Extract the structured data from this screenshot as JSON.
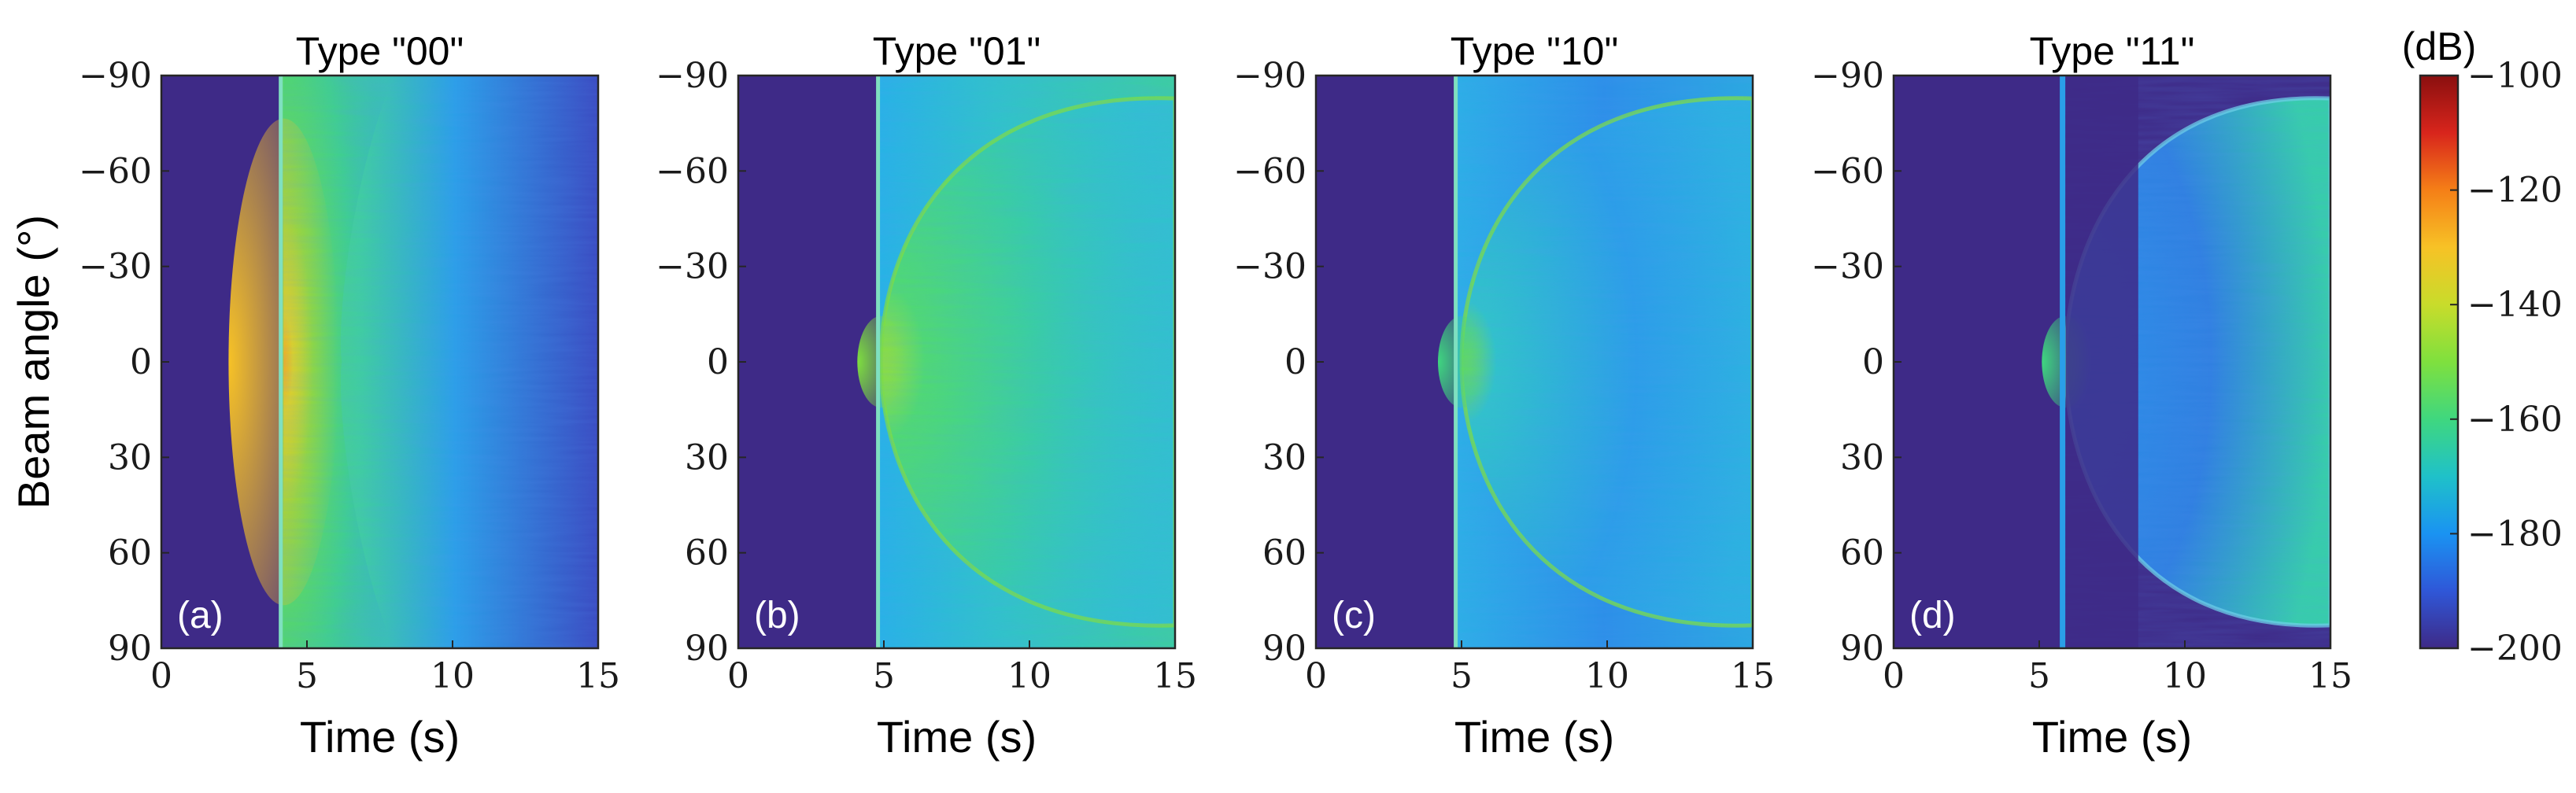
{
  "chart_data": {
    "type": "heatmap",
    "ylabel": "Beam angle (°)",
    "xlabel": "Time (s)",
    "xlim": [
      0,
      15
    ],
    "ylim": [
      -90,
      90
    ],
    "xticks": [
      "0",
      "5",
      "10",
      "15"
    ],
    "yticks": [
      "−90",
      "−60",
      "−30",
      "0",
      "30",
      "60",
      "90"
    ],
    "yticks_values": [
      -90,
      -60,
      -30,
      0,
      30,
      60,
      90
    ],
    "xticks_values": [
      0,
      5,
      10,
      15
    ],
    "panels": [
      {
        "label": "(a)",
        "title": "Type \"00\"",
        "onset_s": 4.1,
        "peak_db": -130,
        "cap_vertex_s": 4.2,
        "cap_edge_s": 8.0,
        "noise_floor_db": -200
      },
      {
        "label": "(b)",
        "title": "Type \"01\"",
        "onset_s": 4.8,
        "peak_db": -150,
        "cap_vertex_s": 4.9,
        "cap_edge_s": 15.0,
        "noise_floor_db": -200
      },
      {
        "label": "(c)",
        "title": "Type \"10\"",
        "onset_s": 4.8,
        "peak_db": -158,
        "cap_vertex_s": 5.0,
        "cap_edge_s": 15.0,
        "noise_floor_db": -200
      },
      {
        "label": "(d)",
        "title": "Type \"11\"",
        "onset_s": 5.8,
        "peak_db": -162,
        "cap_vertex_s": 5.9,
        "cap_edge_s": 15.0,
        "noise_floor_db": -200
      }
    ],
    "colorbar": {
      "unit": "(dB)",
      "min": -200,
      "max": -100,
      "ticks": [
        "−100",
        "−120",
        "−140",
        "−160",
        "−180",
        "−200"
      ],
      "ticks_values": [
        -100,
        -120,
        -140,
        -160,
        -180,
        -200
      ],
      "colormap": [
        "#3e2a87",
        "#2f57d8",
        "#1a93f2",
        "#1fc1c9",
        "#3fd77f",
        "#7fe03e",
        "#c8dc2b",
        "#f7c226",
        "#f57f17",
        "#d8251c",
        "#8a0f0f"
      ]
    }
  }
}
